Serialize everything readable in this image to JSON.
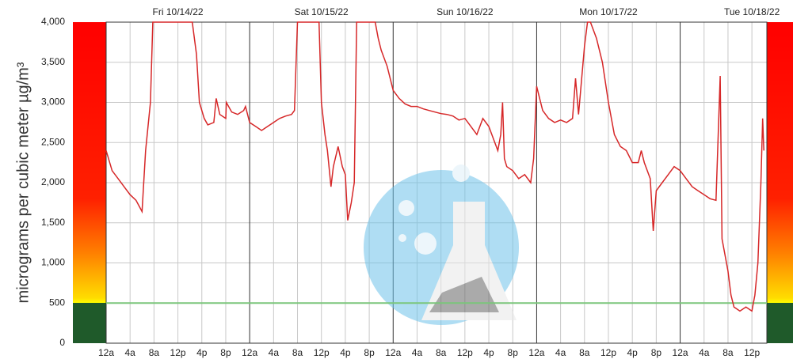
{
  "chart_data": {
    "type": "line",
    "y_label": "micrograms per cubic meter µg/m³",
    "day_labels": [
      "Fri 10/14/22",
      "Sat 10/15/22",
      "Sun 10/16/22",
      "Mon 10/17/22",
      "Tue 10/18/22"
    ],
    "color": "#d62728",
    "threshold": 500,
    "threshold_color": "#7bc67b",
    "grid": true,
    "xlim": [
      0,
      110.5
    ],
    "ylim": [
      0,
      4000
    ],
    "yticks": [
      0,
      500,
      {
        "value": 1000,
        "label": "1,000"
      },
      {
        "value": 1500,
        "label": "1,500"
      },
      {
        "value": 2000,
        "label": "2,000"
      },
      {
        "value": 2500,
        "label": "2,500"
      },
      {
        "value": 3000,
        "label": "3,000"
      },
      {
        "value": 3500,
        "label": "3,500"
      },
      {
        "value": 4000,
        "label": "4,000"
      }
    ],
    "xticks": [
      {
        "value": 0,
        "label": "12a"
      },
      {
        "value": 4,
        "label": "4a"
      },
      {
        "value": 8,
        "label": "8a"
      },
      {
        "value": 12,
        "label": "12p"
      },
      {
        "value": 16,
        "label": "4p"
      },
      {
        "value": 20,
        "label": "8p"
      },
      {
        "value": 24,
        "label": "12a"
      },
      {
        "value": 28,
        "label": "4a"
      },
      {
        "value": 32,
        "label": "8a"
      },
      {
        "value": 36,
        "label": "12p"
      },
      {
        "value": 40,
        "label": "4p"
      },
      {
        "value": 44,
        "label": "8p"
      },
      {
        "value": 48,
        "label": "12a"
      },
      {
        "value": 52,
        "label": "4a"
      },
      {
        "value": 56,
        "label": "8a"
      },
      {
        "value": 60,
        "label": "12p"
      },
      {
        "value": 64,
        "label": "4p"
      },
      {
        "value": 68,
        "label": "8p"
      },
      {
        "value": 72,
        "label": "12a"
      },
      {
        "value": 76,
        "label": "4a"
      },
      {
        "value": 80,
        "label": "8a"
      },
      {
        "value": 84,
        "label": "12p"
      },
      {
        "value": 88,
        "label": "4p"
      },
      {
        "value": 92,
        "label": "8p"
      },
      {
        "value": 96,
        "label": "12a"
      },
      {
        "value": 100,
        "label": "4a"
      },
      {
        "value": 104,
        "label": "8a"
      },
      {
        "value": 108,
        "label": "12p"
      }
    ],
    "x": [
      0,
      1,
      2,
      3,
      4,
      5,
      6,
      6.6,
      7.4,
      7.8,
      14.4,
      15.1,
      15.6,
      16.4,
      17,
      18,
      18.4,
      19,
      20,
      20.1,
      21,
      22,
      23,
      23.3,
      24,
      25,
      26,
      27,
      28,
      29,
      30,
      31,
      31.5,
      32,
      35.6,
      36,
      36.6,
      37,
      37.6,
      38,
      38.8,
      39.5,
      40,
      40.4,
      41,
      41.5,
      41.9,
      45,
      45.5,
      46,
      47,
      48,
      49,
      50,
      51,
      52,
      53,
      54,
      55,
      56,
      57,
      58,
      59,
      60,
      61,
      62,
      63,
      64,
      65,
      65.5,
      66,
      66.3,
      66.6,
      67,
      68,
      69,
      70,
      71,
      71.5,
      72,
      73,
      74,
      75,
      76,
      77,
      78,
      78.5,
      79,
      80,
      80.5,
      81,
      82,
      83,
      84,
      85,
      86,
      87,
      88,
      89,
      89.5,
      90,
      91,
      91.5,
      92,
      93,
      94,
      95,
      96,
      97,
      98,
      99,
      100,
      101,
      102,
      102.7,
      103,
      104,
      104.5,
      105,
      106,
      107,
      108,
      108.5,
      109,
      109.5,
      109.8,
      110
    ],
    "values": [
      2400,
      2150,
      2050,
      1950,
      1850,
      1780,
      1640,
      2400,
      3000,
      4000,
      4000,
      3600,
      3000,
      2800,
      2720,
      2750,
      3050,
      2850,
      2800,
      3000,
      2880,
      2850,
      2900,
      2950,
      2750,
      2700,
      2650,
      2700,
      2750,
      2800,
      2830,
      2850,
      2900,
      4000,
      4000,
      3000,
      2600,
      2400,
      1950,
      2200,
      2450,
      2200,
      2100,
      1530,
      1750,
      2000,
      4000,
      4000,
      3800,
      3650,
      3450,
      3150,
      3050,
      2980,
      2950,
      2950,
      2920,
      2900,
      2880,
      2860,
      2850,
      2830,
      2780,
      2800,
      2700,
      2600,
      2800,
      2700,
      2500,
      2400,
      2600,
      3000,
      2300,
      2200,
      2150,
      2050,
      2100,
      2000,
      2300,
      3200,
      2900,
      2800,
      2750,
      2780,
      2750,
      2800,
      3300,
      2850,
      3700,
      4000,
      4000,
      3800,
      3500,
      3000,
      2600,
      2450,
      2400,
      2250,
      2250,
      2400,
      2250,
      2050,
      1400,
      1900,
      2000,
      2100,
      2200,
      2150,
      2050,
      1950,
      1900,
      1850,
      1800,
      1780,
      3330,
      1300,
      900,
      600,
      450,
      400,
      450,
      400,
      600,
      1000,
      2000,
      2800,
      2400
    ]
  }
}
